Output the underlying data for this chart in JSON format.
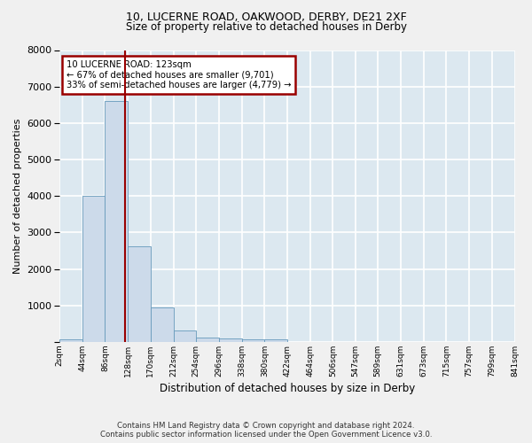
{
  "title1": "10, LUCERNE ROAD, OAKWOOD, DERBY, DE21 2XF",
  "title2": "Size of property relative to detached houses in Derby",
  "xlabel": "Distribution of detached houses by size in Derby",
  "ylabel": "Number of detached properties",
  "bar_values": [
    75,
    4000,
    6600,
    2620,
    950,
    320,
    130,
    100,
    70,
    60,
    0,
    0,
    0,
    0,
    0,
    0,
    0,
    0,
    0,
    0
  ],
  "bin_edges": [
    2,
    44,
    86,
    128,
    170,
    212,
    254,
    296,
    338,
    380,
    422,
    464,
    506,
    547,
    589,
    631,
    673,
    715,
    757,
    799,
    841
  ],
  "tick_labels": [
    "2sqm",
    "44sqm",
    "86sqm",
    "128sqm",
    "170sqm",
    "212sqm",
    "254sqm",
    "296sqm",
    "338sqm",
    "380sqm",
    "422sqm",
    "464sqm",
    "506sqm",
    "547sqm",
    "589sqm",
    "631sqm",
    "673sqm",
    "715sqm",
    "757sqm",
    "799sqm",
    "841sqm"
  ],
  "property_size": 123,
  "property_label": "10 LUCERNE ROAD: 123sqm",
  "annotation_line1": "← 67% of detached houses are smaller (9,701)",
  "annotation_line2": "33% of semi-detached houses are larger (4,779) →",
  "bar_color": "#ccdaea",
  "bar_edge_color": "#6699bb",
  "vline_color": "#990000",
  "annotation_box_color": "#990000",
  "background_color": "#dce8f0",
  "grid_color": "#ffffff",
  "fig_background": "#f0f0f0",
  "ylim": [
    0,
    8000
  ],
  "yticks": [
    0,
    1000,
    2000,
    3000,
    4000,
    5000,
    6000,
    7000,
    8000
  ],
  "footer1": "Contains HM Land Registry data © Crown copyright and database right 2024.",
  "footer2": "Contains public sector information licensed under the Open Government Licence v3.0."
}
